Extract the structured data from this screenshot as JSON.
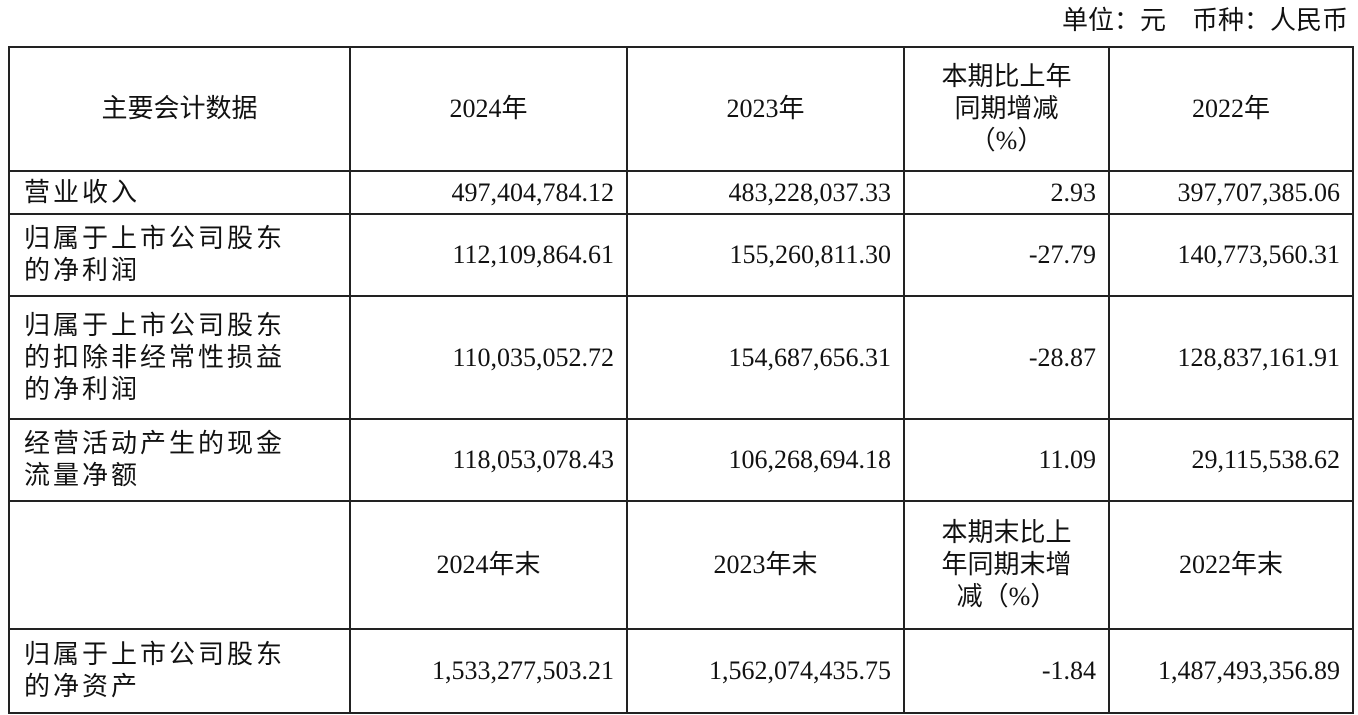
{
  "unit_line": "单位：元　币种：人民币",
  "header1": [
    "主要会计数据",
    "2024年",
    "2023年",
    "本期比上年同期增减（%）",
    "2022年"
  ],
  "header1_change_lines": [
    "本期比上年",
    "同期增减",
    "（%）"
  ],
  "header2": [
    "",
    "2024年末",
    "2023年末",
    "本期末比上年同期末增减（%）",
    "2022年末"
  ],
  "header2_change_lines": [
    "本期末比上",
    "年同期末增",
    "减（%）"
  ],
  "rows": [
    {
      "label_lines": [
        "营业收入"
      ],
      "v2024": "497,404,784.12",
      "v2023": "483,228,037.33",
      "change": "2.93",
      "v2022": "397,707,385.06"
    },
    {
      "label_lines": [
        "归属于上市公司股东",
        "的净利润"
      ],
      "v2024": "112,109,864.61",
      "v2023": "155,260,811.30",
      "change": "-27.79",
      "v2022": "140,773,560.31"
    },
    {
      "label_lines": [
        "归属于上市公司股东",
        "的扣除非经常性损益",
        "的净利润"
      ],
      "v2024": "110,035,052.72",
      "v2023": "154,687,656.31",
      "change": "-28.87",
      "v2022": "128,837,161.91"
    },
    {
      "label_lines": [
        "经营活动产生的现金",
        "流量净额"
      ],
      "v2024": "118,053,078.43",
      "v2023": "106,268,694.18",
      "change": "11.09",
      "v2022": "29,115,538.62"
    }
  ],
  "rows2": [
    {
      "label_lines": [
        "归属于上市公司股东",
        "的净资产"
      ],
      "v2024": "1,533,277,503.21",
      "v2023": "1,562,074,435.75",
      "change": "-1.84",
      "v2022": "1,487,493,356.89"
    }
  ]
}
